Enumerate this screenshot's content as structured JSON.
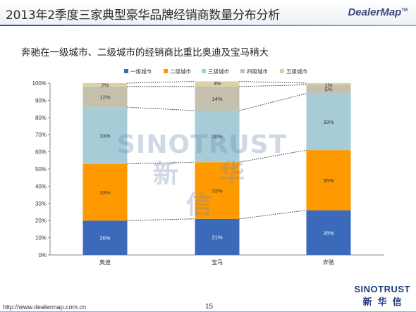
{
  "header": {
    "title": "2013年2季度三家典型豪华品牌经销商数量分布分析",
    "logo_text": "DealerMap",
    "logo_mark": "TM"
  },
  "subtitle": "奔驰在一级城市、二级城市的经销商比重比奥迪及宝马稍大",
  "watermark": {
    "en": "SINOTRUST",
    "cn": "新华信"
  },
  "footer": {
    "url": "http://www.dealermap.com.cn",
    "page": "15",
    "brand_en": "SINOTRUST",
    "brand_cn": "新华信"
  },
  "colors": {
    "tier1": "#3a6ab9",
    "tier2": "#ff9900",
    "tier3": "#a6ccd8",
    "tier4": "#c5bfae",
    "tier5": "#d9d2a6"
  },
  "chart_data": {
    "type": "bar",
    "stacked": true,
    "percent": true,
    "categories": [
      "奥迪",
      "宝马",
      "奔驰"
    ],
    "series": [
      {
        "name": "一级城市",
        "values": [
          20,
          21,
          26
        ],
        "labels": [
          "20%",
          "21%",
          "26%"
        ]
      },
      {
        "name": "二级城市",
        "values": [
          33,
          33,
          35
        ],
        "labels": [
          "33%",
          "33%",
          "35%"
        ]
      },
      {
        "name": "三级城市",
        "values": [
          33,
          30,
          33
        ],
        "labels": [
          "33%",
          "30%",
          "33%"
        ]
      },
      {
        "name": "四级城市",
        "values": [
          12,
          14,
          5
        ],
        "labels": [
          "12%",
          "14%",
          "5%"
        ]
      },
      {
        "name": "五级城市",
        "values": [
          2,
          3,
          1
        ],
        "labels": [
          "2%",
          "3%",
          "1%"
        ]
      }
    ],
    "ylim": [
      0,
      100
    ],
    "yticks": [
      "0%",
      "10%",
      "20%",
      "30%",
      "40%",
      "50%",
      "60%",
      "70%",
      "80%",
      "90%",
      "100%"
    ],
    "legend_position": "top",
    "connector_lines": true,
    "grid": false
  }
}
